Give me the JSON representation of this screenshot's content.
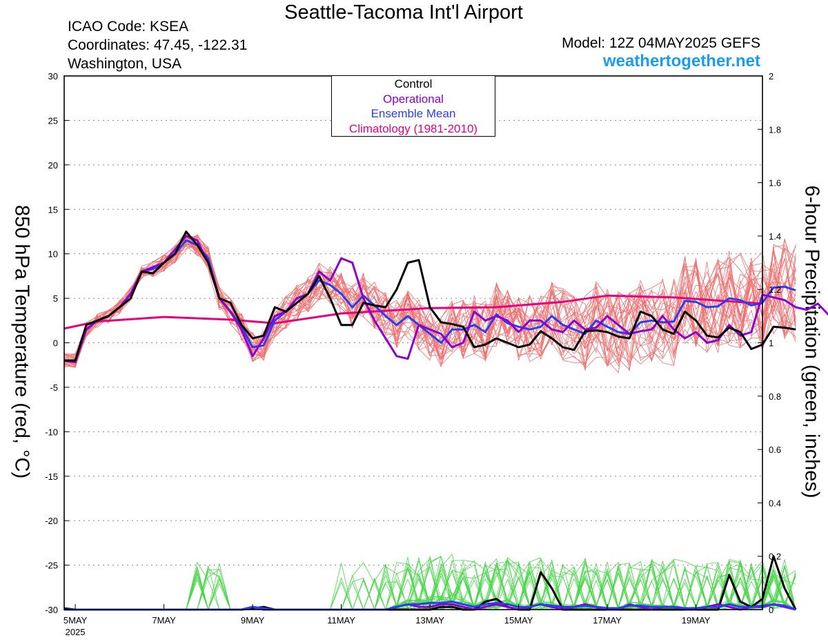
{
  "header": {
    "title": "Seattle-Tacoma Int'l Airport",
    "icao": "ICAO Code: KSEA",
    "coordinates": "Coordinates: 47.45, -122.31",
    "region": "Washington, USA",
    "model": "Model: 12Z 04MAY2025 GEFS",
    "brand": "weathertogether.net"
  },
  "legend": {
    "control": "Control",
    "operational": "Operational",
    "mean": "Ensemble Mean",
    "climatology": "Climatology (1981-2010)"
  },
  "colors": {
    "members_temp": "#f07070",
    "members_precip": "#4cd64c",
    "control": "#000000",
    "operational": "#8c00d4",
    "mean": "#2a3cf5",
    "climatology": "#e8007f"
  },
  "chart_data": {
    "type": "line",
    "ylabel_left": "850 hPa Temperature (red, °C)",
    "ylabel_right": "6-hour Precipitation (green, inches)",
    "ylim_left": [
      -30,
      30
    ],
    "ylim_right": [
      0,
      2
    ],
    "yticks_left": [
      "30",
      "25",
      "20",
      "15",
      "10",
      "5",
      "0",
      "-5",
      "-10",
      "-15",
      "-20",
      "-25",
      "-30"
    ],
    "yticks_right": [
      "2",
      "1.8",
      "1.6",
      "1.4",
      "1.2",
      "1",
      "0.8",
      "0.6",
      "0.4",
      "0.2",
      "0"
    ],
    "x_unit": "days since 5 May 2025 00Z",
    "xlim": [
      -0.25,
      15.5
    ],
    "xticks": [
      {
        "x": 0,
        "label": "5MAY",
        "sub": "2025"
      },
      {
        "x": 2,
        "label": "7MAY"
      },
      {
        "x": 4,
        "label": "9MAY"
      },
      {
        "x": 6,
        "label": "11MAY"
      },
      {
        "x": 8,
        "label": "13MAY"
      },
      {
        "x": 10,
        "label": "15MAY"
      },
      {
        "x": 12,
        "label": "17MAY"
      },
      {
        "x": 14,
        "label": "19MAY"
      }
    ],
    "grid": "dotted horizontal",
    "legend_position": "top-center",
    "series": [
      {
        "name": "Control",
        "axis": "temperature",
        "x_start": -0.25,
        "x_step": 0.25,
        "values": [
          -2,
          -2,
          2,
          2.5,
          3,
          4,
          5,
          8,
          7.8,
          9,
          10,
          12.5,
          11,
          9,
          5,
          4.5,
          2,
          0.5,
          0.8,
          4,
          3.5,
          4.5,
          5.5,
          7.5,
          5,
          2,
          2,
          4.5,
          4.2,
          4,
          6,
          9,
          9.3,
          4,
          2.3,
          2.1,
          1.8,
          -0.5,
          -0.2,
          0.5,
          0,
          -0.5,
          -0.2,
          1.3,
          0.5,
          -0.5,
          -0.8,
          1.3,
          1.4,
          1.2,
          0.7,
          0.5,
          3.5,
          3,
          1.5,
          1,
          3.5,
          2.5,
          0.8,
          0.6,
          1.7,
          1.2,
          -0.7,
          -0.2,
          1.8,
          1.7,
          1.5
        ]
      },
      {
        "name": "Operational",
        "axis": "temperature",
        "x_start": -0.25,
        "x_step": 0.25,
        "values": [
          -2,
          -2.2,
          1.5,
          2.5,
          3,
          4,
          5.5,
          8,
          8.5,
          9,
          10.5,
          12,
          11.5,
          9,
          5,
          3.5,
          1.5,
          -1.5,
          0.5,
          3,
          3.5,
          5,
          5.5,
          8,
          7,
          9.5,
          9,
          5,
          2.5,
          0.5,
          -1.5,
          -1.8,
          2,
          1.5,
          1,
          -0.5,
          0,
          3.5,
          2.5,
          3,
          2.5,
          1.2,
          2.5,
          2.5,
          1.5,
          1.2,
          2.5,
          1.5,
          1.7,
          3,
          2,
          1,
          1.3,
          1.5,
          3,
          1.5,
          0.5,
          1.2,
          0,
          0.3,
          2,
          0.8,
          1.2,
          5.4,
          5.1,
          4.8,
          4,
          3.7,
          4.4,
          3.1,
          3.5
        ]
      },
      {
        "name": "Ensemble Mean",
        "axis": "temperature",
        "x_start": -0.25,
        "x_step": 0.25,
        "values": [
          -2,
          -2,
          1.5,
          2.5,
          3,
          4,
          5.5,
          8,
          8.3,
          9,
          10,
          11.5,
          11,
          9.5,
          5,
          3.5,
          1.8,
          -0.5,
          -0.3,
          2.5,
          3.5,
          4.5,
          5.5,
          7,
          6.5,
          5.5,
          4,
          5.3,
          4.2,
          3,
          2,
          3,
          2,
          1,
          0,
          1.5,
          1.5,
          2,
          1.2,
          3.2,
          2.2,
          1.8,
          1.5,
          1.8,
          3,
          2,
          1.5,
          1,
          2.5,
          1.8,
          1.2,
          1,
          2.3,
          2.5,
          2.3,
          2.4,
          4.7,
          4.6,
          4,
          4.1,
          5,
          4.8,
          4.2,
          4.5,
          6.2,
          6.3,
          5.9
        ]
      },
      {
        "name": "Climatology (1981-2010)",
        "axis": "temperature",
        "x": [
          -0.25,
          0.5,
          2,
          3.5,
          4.5,
          6,
          8,
          9.5,
          11,
          12,
          13.5,
          15.5
        ],
        "values": [
          1.6,
          2.4,
          2.9,
          2.6,
          2.2,
          3.3,
          3.9,
          4.0,
          4.6,
          5.3,
          5.1,
          4.4
        ]
      },
      {
        "name": "Control",
        "axis": "precipitation",
        "x_start": -0.25,
        "x_step": 0.25,
        "values": [
          0.005,
          0,
          0,
          0,
          0,
          0,
          0,
          0,
          0,
          0,
          0,
          0,
          0,
          0,
          0,
          0,
          0,
          0.005,
          0.01,
          0,
          0,
          0,
          0,
          0,
          0,
          0,
          0,
          0,
          0,
          0,
          0,
          0,
          0,
          0,
          0.01,
          0.01,
          0,
          0,
          0.03,
          0.04,
          0.01,
          0,
          0,
          0.14,
          0.08,
          0,
          0,
          0,
          0,
          0,
          0,
          0,
          0,
          0,
          0,
          0,
          0,
          0,
          0,
          0,
          0.13,
          0.03,
          0.01,
          0.04,
          0.2,
          0.08,
          0
        ]
      },
      {
        "name": "Operational",
        "axis": "precipitation",
        "x_start": -0.25,
        "x_step": 0.25,
        "values": [
          0,
          0,
          0,
          0,
          0,
          0,
          0,
          0,
          0,
          0,
          0,
          0,
          0,
          0,
          0,
          0,
          0,
          0.01,
          0,
          0,
          0,
          0,
          0,
          0,
          0,
          0,
          0,
          0,
          0,
          0,
          0.01,
          0.02,
          0.01,
          0.01,
          0.02,
          0.02,
          0.01,
          0,
          0.01,
          0.02,
          0.01,
          0,
          0.01,
          0.02,
          0.01,
          0,
          0.01,
          0.02,
          0.01,
          0,
          0,
          0.02,
          0.01,
          0,
          0.01,
          0.01,
          0,
          0,
          0.01,
          0.02,
          0.01,
          0,
          0.01,
          0.01,
          0.02,
          0.01,
          0
        ]
      },
      {
        "name": "Ensemble Mean",
        "axis": "precipitation",
        "x_start": -0.25,
        "x_step": 0.25,
        "values": [
          0,
          0,
          0,
          0,
          0,
          0,
          0,
          0,
          0,
          0,
          0,
          0,
          0,
          0,
          0,
          0,
          0,
          0.01,
          0.005,
          0,
          0,
          0,
          0,
          0,
          0,
          0,
          0,
          0,
          0,
          0,
          0.01,
          0.02,
          0.02,
          0.025,
          0.025,
          0.03,
          0.02,
          0.01,
          0.02,
          0.025,
          0.02,
          0.01,
          0.01,
          0.02,
          0.015,
          0.01,
          0.01,
          0.015,
          0.01,
          0.005,
          0.005,
          0.015,
          0.015,
          0.01,
          0.01,
          0.01,
          0.005,
          0.005,
          0.01,
          0.01,
          0.02,
          0.01,
          0.01,
          0.015,
          0.02,
          0.015,
          0
        ]
      }
    ]
  }
}
